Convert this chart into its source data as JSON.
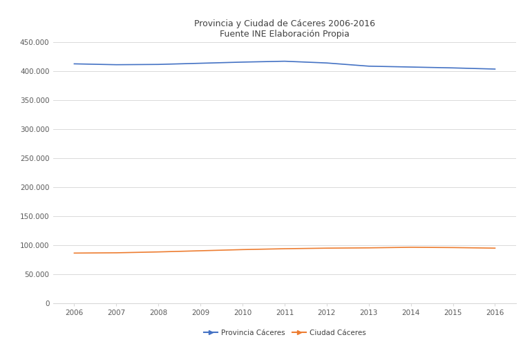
{
  "title_line1": "Provincia y Ciudad de Cáceres 2006-2016",
  "title_line2": "Fuente INE Elaboración Propia",
  "years": [
    2006,
    2007,
    2008,
    2009,
    2010,
    2011,
    2012,
    2013,
    2014,
    2015,
    2016
  ],
  "provincia": [
    413000,
    411500,
    412000,
    414000,
    416000,
    417500,
    414500,
    409000,
    407500,
    406000,
    404000
  ],
  "ciudad": [
    87000,
    87500,
    89000,
    91000,
    93000,
    94500,
    95500,
    96000,
    97000,
    96500,
    95500
  ],
  "provincia_color": "#4472C4",
  "ciudad_color": "#ED7D31",
  "ylim": [
    0,
    450000
  ],
  "yticks": [
    0,
    50000,
    100000,
    150000,
    200000,
    250000,
    300000,
    350000,
    400000,
    450000
  ],
  "background_color": "#ffffff",
  "grid_color": "#d9d9d9",
  "label_provincia": "Provincia Cáceres",
  "label_ciudad": "Ciudad Cáceres",
  "title_fontsize": 9,
  "tick_fontsize": 7.5
}
